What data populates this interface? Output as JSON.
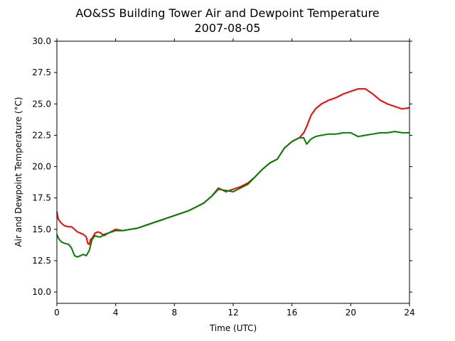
{
  "chart_data": {
    "type": "line",
    "title": "AO&SS Building Tower Air and Dewpoint Temperature",
    "subtitle": "2007-08-05",
    "xlabel": "Time (UTC)",
    "ylabel": "Air and Dewpoint Temperature (°C)",
    "xlim": [
      0,
      24
    ],
    "ylim": [
      9.1,
      30.0
    ],
    "xticks": [
      0,
      4,
      8,
      12,
      16,
      20,
      24
    ],
    "yticks": [
      10.0,
      12.5,
      15.0,
      17.5,
      20.0,
      22.5,
      25.0,
      27.5,
      30.0
    ],
    "grid": false,
    "legend": "none",
    "series": [
      {
        "color": "#ff0000",
        "x": [
          0,
          0.1,
          0.3,
          0.5,
          0.8,
          1.0,
          1.2,
          1.4,
          1.6,
          1.8,
          2.0,
          2.1,
          2.2,
          2.3,
          2.4,
          2.6,
          2.8,
          3.0,
          3.2,
          3.5,
          4.0,
          4.5,
          5.0,
          5.5,
          6.0,
          6.5,
          7.0,
          7.5,
          8.0,
          8.5,
          9.0,
          9.5,
          10.0,
          10.5,
          11.0,
          11.5,
          12.0,
          12.5,
          13.0,
          13.5,
          14.0,
          14.5,
          15.0,
          15.5,
          16.0,
          16.5,
          16.8,
          17.0,
          17.3,
          17.6,
          18.0,
          18.5,
          19.0,
          19.5,
          20.0,
          20.5,
          21.0,
          21.5,
          22.0,
          22.5,
          23.0,
          23.5,
          24.0
        ],
        "y": [
          16.4,
          15.8,
          15.5,
          15.3,
          15.2,
          15.2,
          15.0,
          14.8,
          14.7,
          14.6,
          14.4,
          13.9,
          13.8,
          14.2,
          14.3,
          14.7,
          14.8,
          14.7,
          14.5,
          14.7,
          15.0,
          14.9,
          15.0,
          15.1,
          15.3,
          15.5,
          15.7,
          15.9,
          16.1,
          16.3,
          16.5,
          16.8,
          17.1,
          17.6,
          18.3,
          18.0,
          18.2,
          18.4,
          18.7,
          19.2,
          19.8,
          20.3,
          20.6,
          21.5,
          22.0,
          22.3,
          22.7,
          23.2,
          24.1,
          24.6,
          25.0,
          25.3,
          25.5,
          25.8,
          26.0,
          26.2,
          26.2,
          25.8,
          25.3,
          25.0,
          24.8,
          24.6,
          24.7
        ]
      },
      {
        "color": "#008000",
        "x": [
          0,
          0.1,
          0.3,
          0.5,
          0.8,
          1.0,
          1.2,
          1.4,
          1.6,
          1.8,
          2.0,
          2.2,
          2.4,
          2.6,
          2.8,
          3.0,
          3.2,
          3.5,
          4.0,
          4.5,
          5.0,
          5.5,
          6.0,
          6.5,
          7.0,
          7.5,
          8.0,
          8.5,
          9.0,
          9.5,
          10.0,
          10.5,
          11.0,
          11.5,
          12.0,
          12.5,
          13.0,
          13.5,
          14.0,
          14.5,
          15.0,
          15.5,
          16.0,
          16.5,
          16.8,
          17.0,
          17.3,
          17.6,
          18.0,
          18.5,
          19.0,
          19.5,
          20.0,
          20.5,
          21.0,
          21.5,
          22.0,
          22.5,
          23.0,
          23.5,
          24.0
        ],
        "y": [
          14.6,
          14.3,
          14.0,
          13.9,
          13.8,
          13.5,
          12.9,
          12.8,
          12.9,
          13.0,
          12.9,
          13.3,
          14.2,
          14.5,
          14.4,
          14.4,
          14.6,
          14.7,
          14.9,
          14.9,
          15.0,
          15.1,
          15.3,
          15.5,
          15.7,
          15.9,
          16.1,
          16.3,
          16.5,
          16.8,
          17.1,
          17.6,
          18.2,
          18.1,
          18.0,
          18.3,
          18.6,
          19.2,
          19.8,
          20.3,
          20.6,
          21.5,
          22.0,
          22.3,
          22.3,
          21.8,
          22.2,
          22.4,
          22.5,
          22.6,
          22.6,
          22.7,
          22.7,
          22.4,
          22.5,
          22.6,
          22.7,
          22.7,
          22.8,
          22.7,
          22.7
        ]
      }
    ]
  }
}
